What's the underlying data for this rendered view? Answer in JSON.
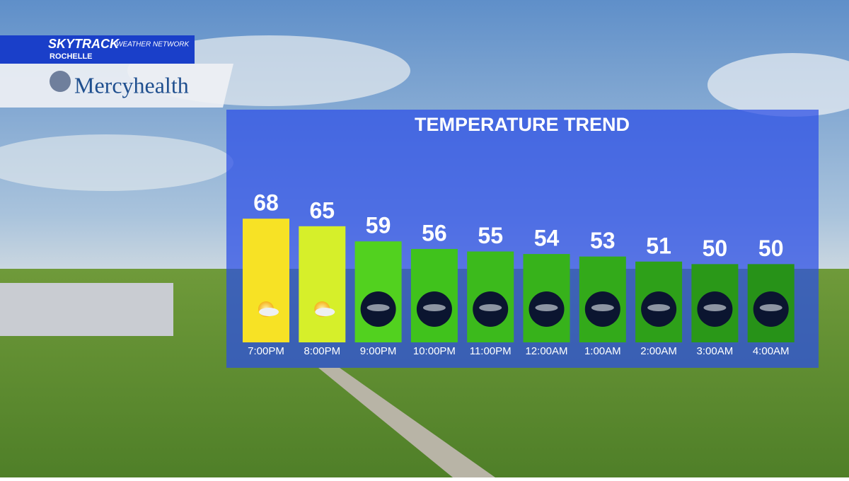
{
  "branding": {
    "network": "SKYTRACK",
    "network_sub": "WEATHER NETWORK",
    "location": "ROCHELLE",
    "sponsor": "Mercyhealth"
  },
  "chart_data": {
    "type": "bar",
    "title": "TEMPERATURE TREND",
    "categories": [
      "7:00PM",
      "8:00PM",
      "9:00PM",
      "10:00PM",
      "11:00PM",
      "12:00AM",
      "1:00AM",
      "2:00AM",
      "3:00AM",
      "4:00AM"
    ],
    "values": [
      68,
      65,
      59,
      56,
      55,
      54,
      53,
      51,
      50,
      50
    ],
    "colors": [
      "#f7e225",
      "#d6ef2a",
      "#52d11f",
      "#40c21c",
      "#3cba1c",
      "#37b21b",
      "#33aa1a",
      "#2ea019",
      "#2a9818",
      "#279218"
    ],
    "ylim": [
      19,
      70
    ]
  }
}
